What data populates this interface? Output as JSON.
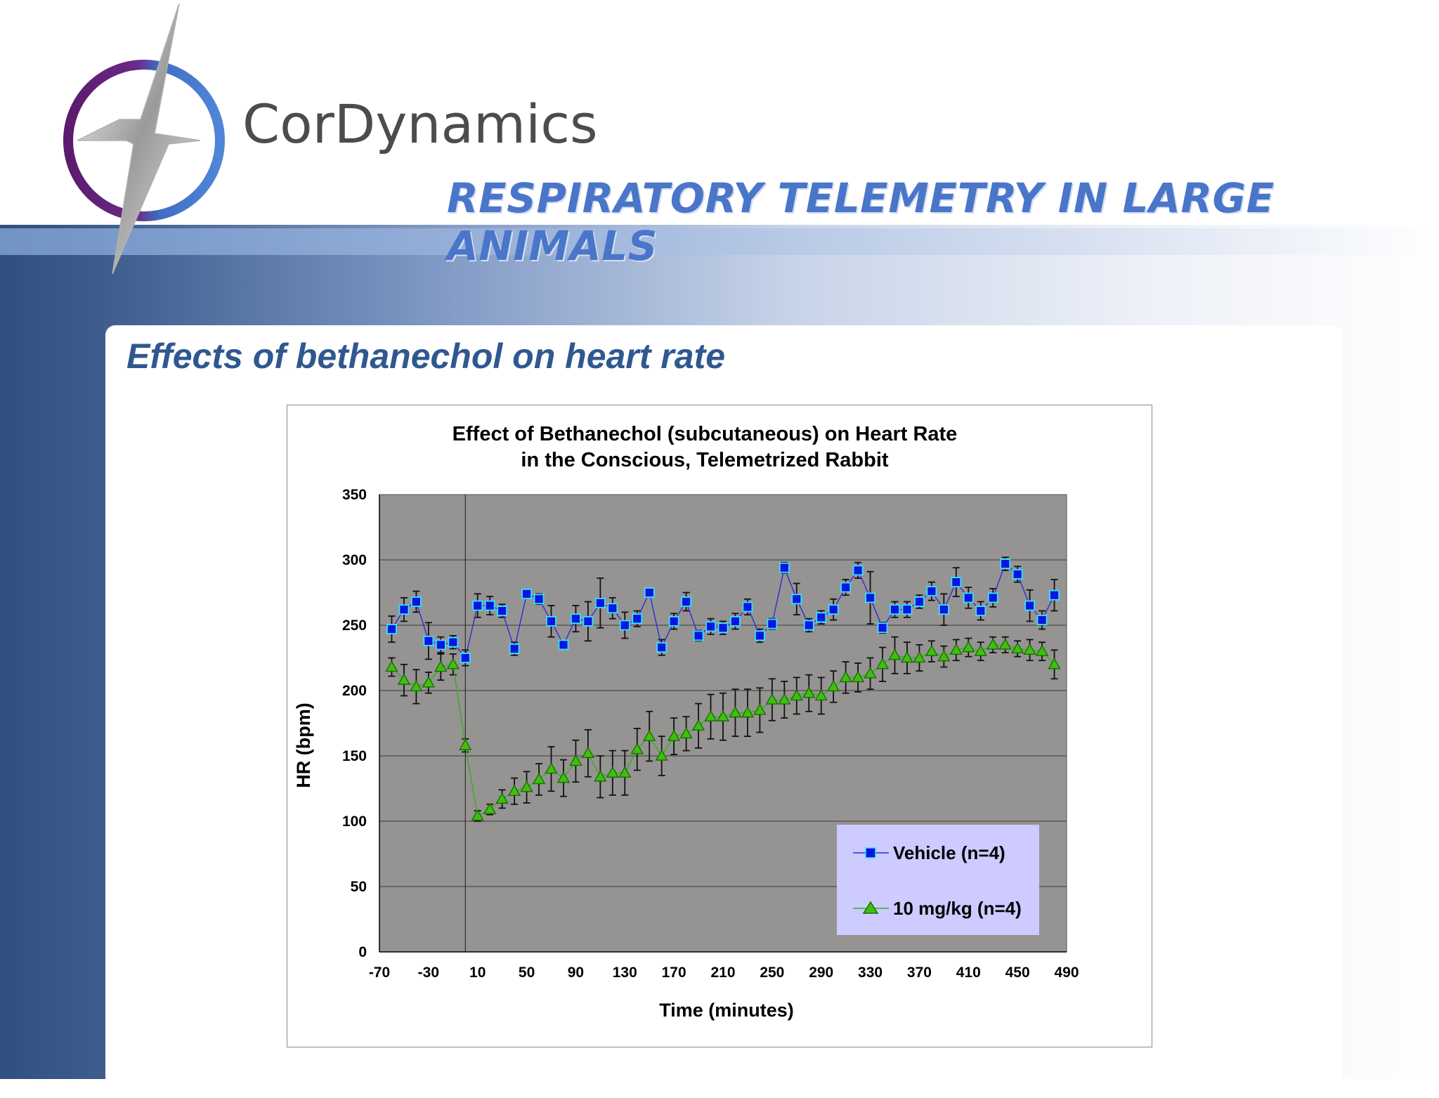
{
  "brand": {
    "name": "CorDynamics"
  },
  "banner": {
    "title": "RESPIRATORY TELEMETRY IN LARGE ANIMALS"
  },
  "slide": {
    "heading": "Effects of bethanechol on heart rate"
  },
  "colors": {
    "plot_bg": "#969393",
    "vehicle": "#0a14e0",
    "vehicle_edge": "#2ee6ff",
    "dose": "#3fbf0f",
    "dose_edge": "#1a6e00",
    "legend_bg": "#cdcbff",
    "heading": "#2f5890",
    "banner": "#4a76c9"
  },
  "chart_data": {
    "type": "line",
    "title_line1": "Effect of Bethanechol (subcutaneous) on Heart Rate",
    "title_line2": "in the Conscious, Telemetrized Rabbit",
    "xlabel": "Time (minutes)",
    "ylabel": "HR (bpm)",
    "xlim": [
      -70,
      490
    ],
    "ylim": [
      0,
      350
    ],
    "x_ticks": [
      -70,
      -30,
      10,
      50,
      90,
      130,
      170,
      210,
      250,
      290,
      330,
      370,
      410,
      450,
      490
    ],
    "y_ticks": [
      0,
      50,
      100,
      150,
      200,
      250,
      300,
      350
    ],
    "dosing_line_x": 0,
    "grid": "horizontal",
    "legend_position": "bottom-right",
    "series": [
      {
        "name": "Vehicle (n=4)",
        "marker": "square",
        "x": [
          -60,
          -50,
          -40,
          -30,
          -20,
          -10,
          0,
          10,
          20,
          30,
          40,
          50,
          60,
          70,
          80,
          90,
          100,
          110,
          120,
          130,
          140,
          150,
          160,
          170,
          180,
          190,
          200,
          210,
          220,
          230,
          240,
          250,
          260,
          270,
          280,
          290,
          300,
          310,
          320,
          330,
          340,
          350,
          360,
          370,
          380,
          390,
          400,
          410,
          420,
          430,
          440,
          450,
          460,
          470,
          480
        ],
        "y": [
          247,
          262,
          268,
          238,
          235,
          237,
          225,
          265,
          265,
          261,
          232,
          274,
          270,
          253,
          235,
          255,
          253,
          267,
          263,
          250,
          255,
          275,
          233,
          253,
          268,
          242,
          249,
          248,
          253,
          264,
          242,
          251,
          294,
          270,
          250,
          256,
          262,
          279,
          292,
          271,
          248,
          262,
          262,
          268,
          276,
          262,
          283,
          271,
          261,
          271,
          297,
          289,
          265,
          254,
          273
        ],
        "err": [
          10,
          9,
          8,
          14,
          6,
          5,
          6,
          9,
          7,
          5,
          5,
          3,
          4,
          12,
          3,
          10,
          15,
          19,
          8,
          10,
          6,
          3,
          6,
          6,
          7,
          4,
          6,
          5,
          6,
          6,
          5,
          4,
          4,
          12,
          5,
          5,
          8,
          6,
          6,
          20,
          4,
          6,
          6,
          5,
          7,
          12,
          11,
          8,
          7,
          7,
          5,
          6,
          12,
          7,
          12
        ]
      },
      {
        "name": "10 mg/kg (n=4)",
        "marker": "triangle",
        "x": [
          -60,
          -50,
          -40,
          -30,
          -20,
          -10,
          0,
          10,
          20,
          30,
          40,
          50,
          60,
          70,
          80,
          90,
          100,
          110,
          120,
          130,
          140,
          150,
          160,
          170,
          180,
          190,
          200,
          210,
          220,
          230,
          240,
          250,
          260,
          270,
          280,
          290,
          300,
          310,
          320,
          330,
          340,
          350,
          360,
          370,
          380,
          390,
          400,
          410,
          420,
          430,
          440,
          450,
          460,
          470,
          480
        ],
        "y": [
          218,
          208,
          203,
          206,
          218,
          220,
          158,
          104,
          109,
          117,
          123,
          126,
          132,
          140,
          133,
          146,
          152,
          134,
          137,
          137,
          155,
          165,
          150,
          165,
          167,
          173,
          180,
          180,
          183,
          183,
          185,
          193,
          193,
          196,
          198,
          196,
          203,
          210,
          210,
          213,
          220,
          227,
          225,
          225,
          230,
          226,
          231,
          233,
          230,
          235,
          235,
          232,
          231,
          230,
          220
        ],
        "err": [
          7,
          12,
          13,
          8,
          10,
          8,
          5,
          4,
          4,
          7,
          10,
          12,
          12,
          17,
          14,
          16,
          18,
          16,
          17,
          17,
          16,
          19,
          15,
          14,
          13,
          17,
          17,
          18,
          18,
          18,
          17,
          16,
          14,
          14,
          14,
          14,
          12,
          12,
          11,
          12,
          13,
          14,
          12,
          10,
          8,
          8,
          8,
          7,
          7,
          6,
          6,
          6,
          8,
          7,
          11
        ]
      }
    ]
  }
}
